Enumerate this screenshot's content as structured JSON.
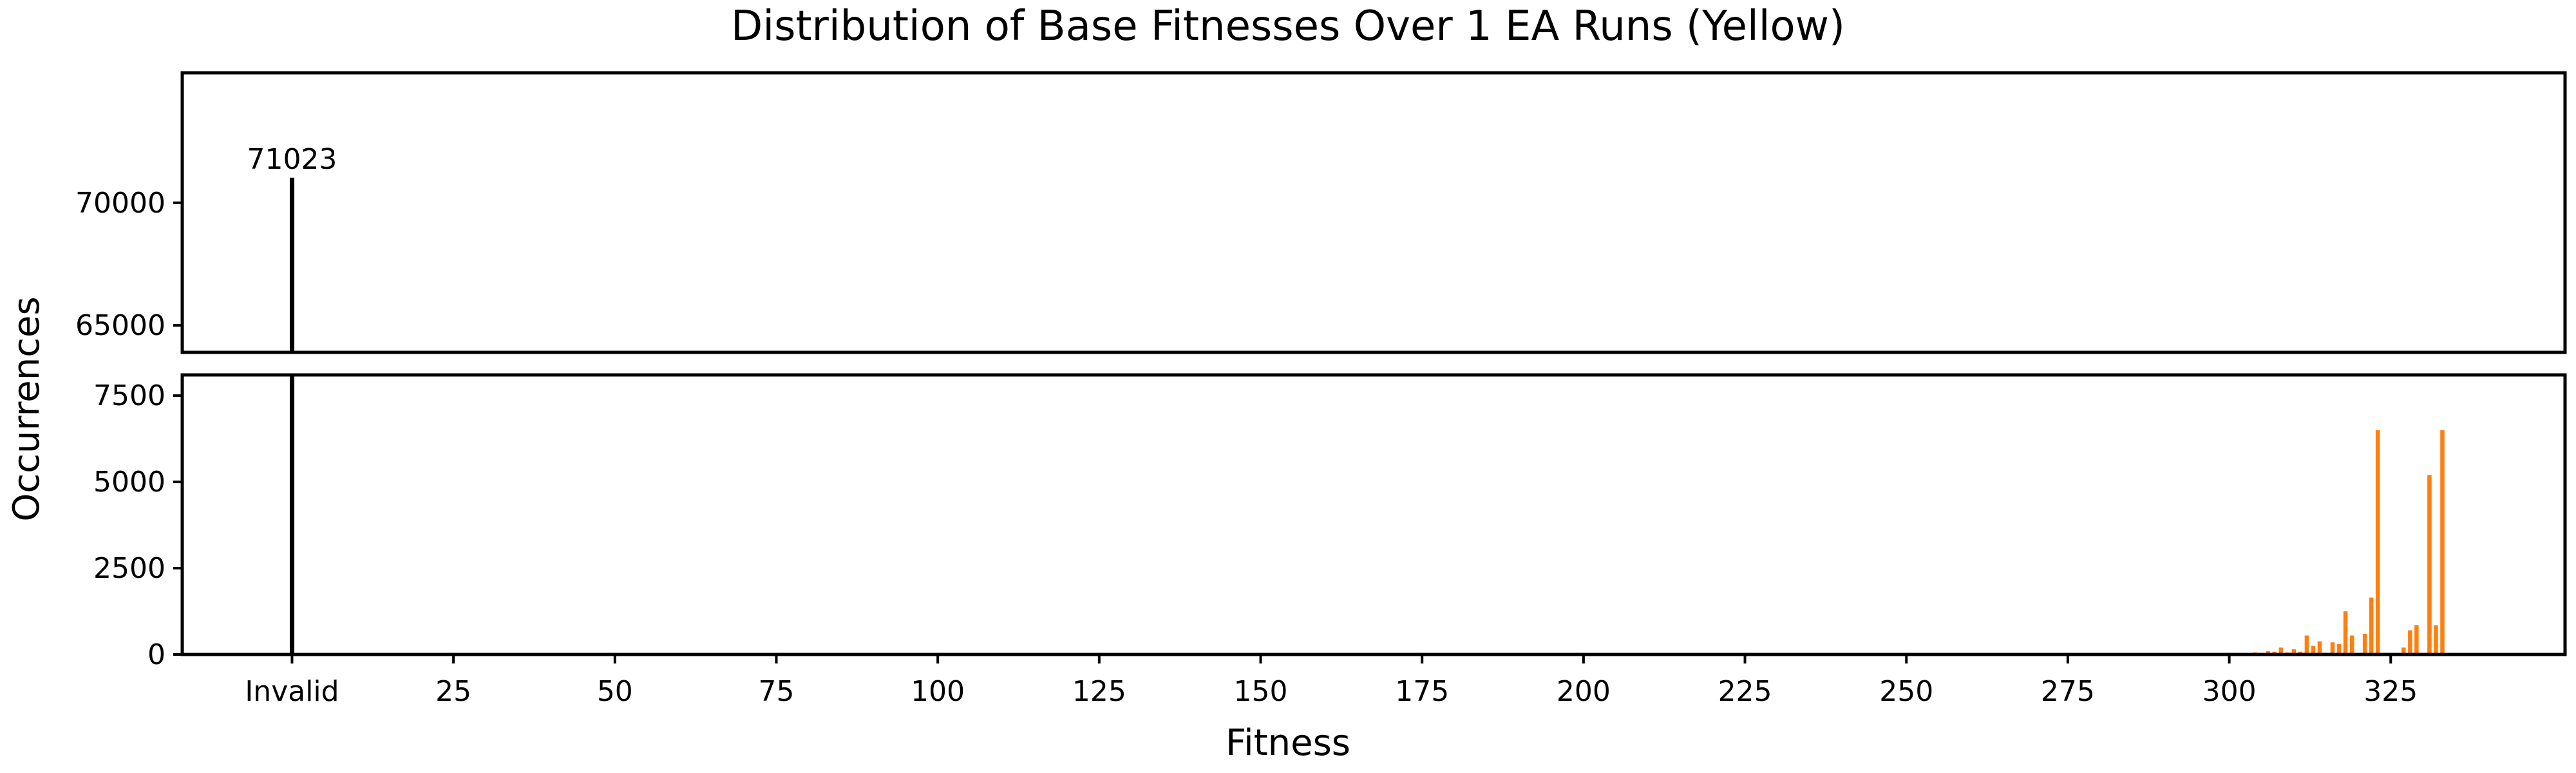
{
  "chart_data": {
    "type": "bar",
    "title": "Distribution of Base Fitnesses Over 1 EA Runs (Yellow)",
    "xlabel": "Fitness",
    "ylabel": "Occurrences",
    "broken_y_axis": true,
    "grid": false,
    "xlim": [
      -17,
      352
    ],
    "x_ticks": [
      {
        "value": 0,
        "label": "Invalid"
      },
      {
        "value": 25,
        "label": "25"
      },
      {
        "value": 50,
        "label": "50"
      },
      {
        "value": 75,
        "label": "75"
      },
      {
        "value": 100,
        "label": "100"
      },
      {
        "value": 125,
        "label": "125"
      },
      {
        "value": 150,
        "label": "150"
      },
      {
        "value": 175,
        "label": "175"
      },
      {
        "value": 200,
        "label": "200"
      },
      {
        "value": 225,
        "label": "225"
      },
      {
        "value": 250,
        "label": "250"
      },
      {
        "value": 275,
        "label": "275"
      },
      {
        "value": 300,
        "label": "300"
      },
      {
        "value": 325,
        "label": "325"
      }
    ],
    "upper_panel": {
      "ylim": [
        63900,
        75300
      ],
      "y_ticks": [
        {
          "value": 65000,
          "label": "65000"
        },
        {
          "value": 70000,
          "label": "70000"
        }
      ]
    },
    "lower_panel": {
      "ylim": [
        0,
        8100
      ],
      "y_ticks": [
        {
          "value": 0,
          "label": "0"
        },
        {
          "value": 2500,
          "label": "2500"
        },
        {
          "value": 5000,
          "label": "5000"
        },
        {
          "value": 7500,
          "label": "7500"
        }
      ]
    },
    "invalid_bar": {
      "x": 0,
      "value": 71023,
      "label": "71023",
      "color": "#000000"
    },
    "series": [
      {
        "color": "#ff7f0e",
        "x": [
          302,
          303,
          304,
          305,
          306,
          307,
          308,
          309,
          310,
          311,
          312,
          313,
          314,
          315,
          316,
          317,
          318,
          319,
          320,
          321,
          322,
          323,
          324,
          325,
          326,
          327,
          328,
          329,
          330,
          331,
          332,
          333
        ],
        "values": [
          20,
          30,
          60,
          40,
          100,
          80,
          200,
          60,
          150,
          80,
          550,
          250,
          380,
          50,
          350,
          300,
          1250,
          550,
          20,
          600,
          1650,
          6500,
          20,
          20,
          30,
          200,
          700,
          850,
          30,
          5200,
          850,
          6500
        ]
      }
    ]
  }
}
